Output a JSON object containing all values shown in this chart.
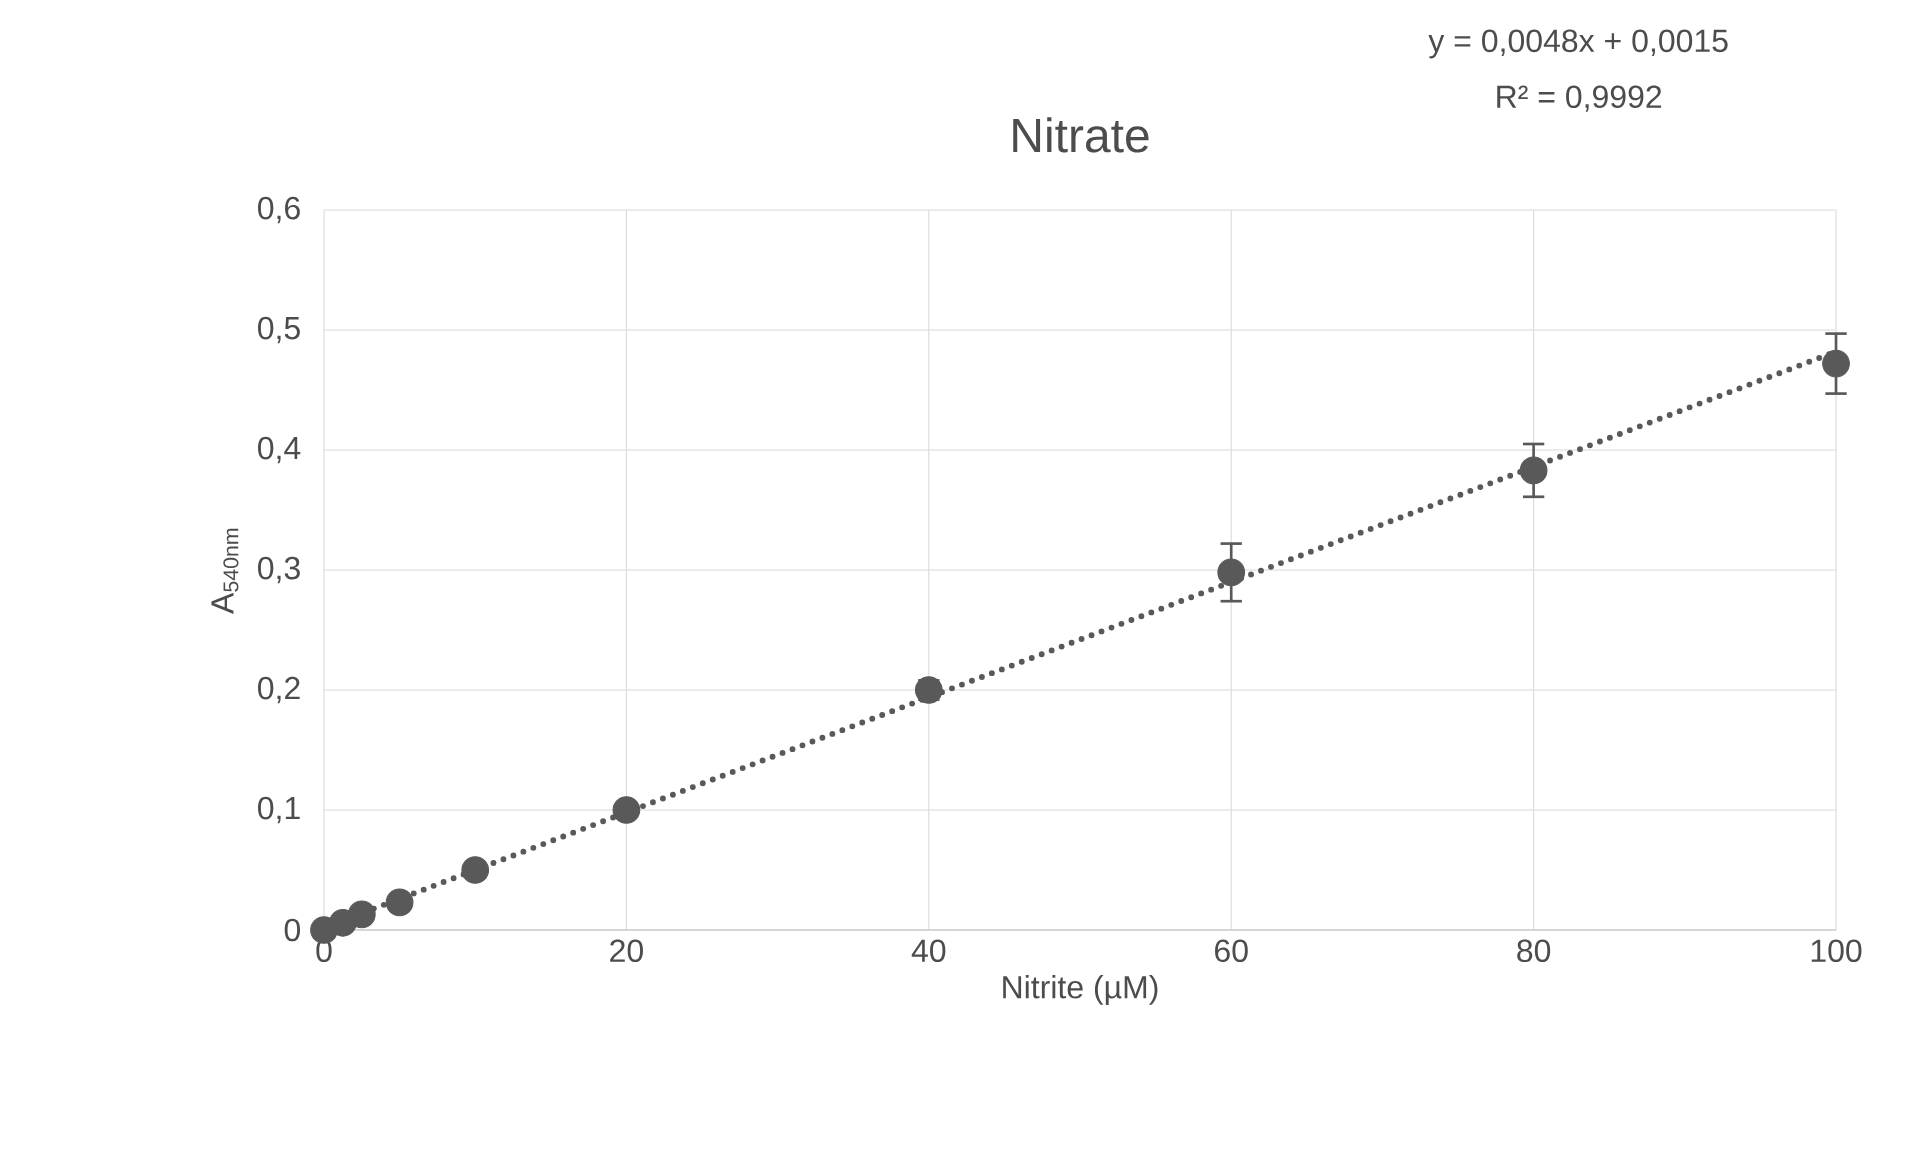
{
  "chart_data": {
    "type": "scatter",
    "title": "Nitrate",
    "xlabel": "Nitrite (µM)",
    "ylabel": "A$_{540nm}$",
    "annotations": [
      "y = 0,0048x + 0,0015",
      "R² = 0,9992"
    ],
    "series": [
      {
        "color": "#595959",
        "x": [
          0,
          1.25,
          2.5,
          5,
          10,
          20,
          40,
          60,
          80,
          100
        ],
        "values": [
          0,
          0.006,
          0.013,
          0.023,
          0.05,
          0.1,
          0.2,
          0.298,
          0.383,
          0.472
        ],
        "errors": [
          null,
          null,
          null,
          null,
          null,
          null,
          0.008,
          0.024,
          0.022,
          0.025
        ]
      },
      {
        "type": "line",
        "color": "#595959",
        "line_style": "dotted",
        "marker": "none",
        "x": [
          0,
          100
        ],
        "values": [
          0.002,
          0.482
        ]
      }
    ],
    "xlim": [
      0,
      100
    ],
    "xticks": [
      0,
      20,
      40,
      60,
      80,
      100
    ],
    "ylim": [
      0,
      0.6
    ],
    "yticks": [
      {
        "value": 0,
        "label": "0"
      },
      {
        "value": 0.1,
        "label": "0,1"
      },
      {
        "value": 0.2,
        "label": "0,2"
      },
      {
        "value": 0.3,
        "label": "0,3"
      },
      {
        "value": 0.4,
        "label": "0,4"
      },
      {
        "value": 0.5,
        "label": "0,5"
      },
      {
        "value": 0.6,
        "label": "0,6"
      }
    ],
    "grid": true,
    "marker": "circle"
  }
}
